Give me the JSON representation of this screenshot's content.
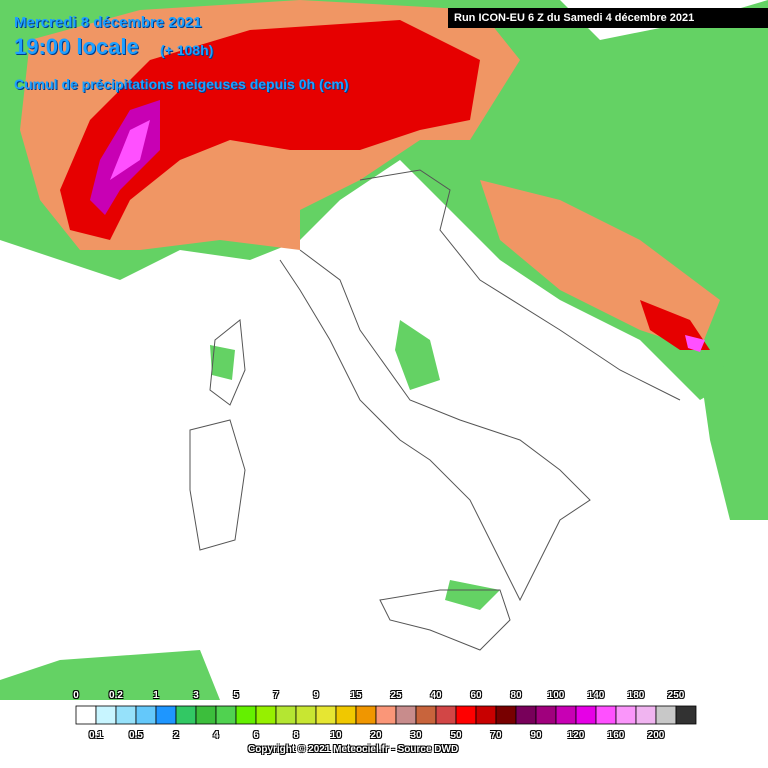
{
  "header": {
    "date": "Mercredi 8 décembre 2021",
    "time": "19:00 locale",
    "lead": "(+ 108h)",
    "product": "Cumul de précipitations neigeuses depuis 0h (cm)"
  },
  "run": "Run ICON-EU 6 Z du Samedi 4 décembre 2021",
  "legend": {
    "top_labels": [
      "0",
      "0.2",
      "1",
      "3",
      "5",
      "7",
      "9",
      "15",
      "25",
      "40",
      "60",
      "80",
      "100",
      "140",
      "180",
      "250"
    ],
    "bottom_labels": [
      "0.1",
      "0.5",
      "2",
      "4",
      "6",
      "8",
      "10",
      "20",
      "30",
      "50",
      "70",
      "90",
      "120",
      "160",
      "200"
    ],
    "colors": [
      "#ffffff",
      "#c8f5ff",
      "#96e1fa",
      "#64c8fa",
      "#1e96ff",
      "#32c864",
      "#3cbe3c",
      "#50d250",
      "#64f000",
      "#96f000",
      "#b4e632",
      "#c8e632",
      "#e6e632",
      "#f0c800",
      "#f09600",
      "#fa9678",
      "#c88c8c",
      "#c8643c",
      "#d24646",
      "#ff0000",
      "#c80000",
      "#780000",
      "#78005a",
      "#a0007d",
      "#c800b4",
      "#e600e6",
      "#ff50ff",
      "#fa96fa",
      "#f0b4f0",
      "#c8c8c8",
      "#323232"
    ]
  },
  "copyright": "Copyright © 2021 Meteociel.fr - Source DWD"
}
